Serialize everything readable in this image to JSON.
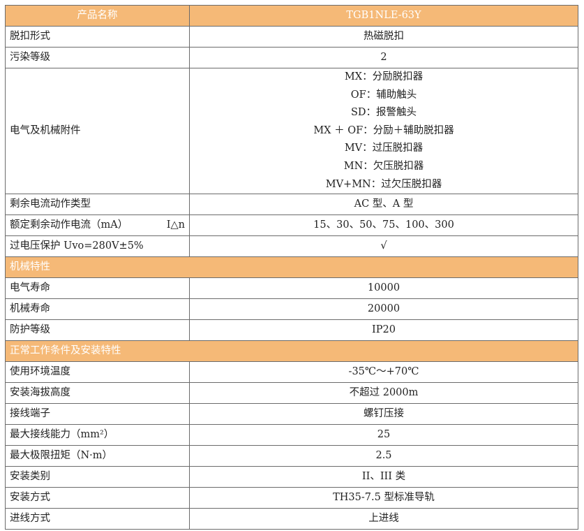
{
  "header": {
    "label": "产品名称",
    "value": "TGB1NLE-63Y"
  },
  "colors": {
    "header_bg": "#f5b977",
    "header_text": "#ffffff",
    "border": "#6b6b6b"
  },
  "rows": [
    {
      "type": "row",
      "label": "脱扣形式",
      "value": "热磁脱扣"
    },
    {
      "type": "row",
      "label": "污染等级",
      "value": "2"
    },
    {
      "type": "multi",
      "label": "电气及机械附件",
      "values": [
        "MX：分励脱扣器",
        "OF：辅助触头",
        "SD：报警触头",
        "MX ＋ OF：分励＋辅助脱扣器",
        "MV：过压脱扣器",
        "MN：欠压脱扣器",
        "MV+MN：过欠压脱扣器"
      ]
    },
    {
      "type": "row",
      "label": "剩余电流动作类型",
      "value": "AC 型、A 型"
    },
    {
      "type": "row",
      "label": "额定剩余动作电流（mA）",
      "label_suffix": "I△n",
      "value": "15、30、50、75、100、300"
    },
    {
      "type": "row",
      "label": "过电压保护 Uvo=280V±5%",
      "value": "√"
    },
    {
      "type": "section",
      "label": "机械特性"
    },
    {
      "type": "row",
      "label": "电气寿命",
      "value": "10000"
    },
    {
      "type": "row",
      "label": "机械寿命",
      "value": "20000"
    },
    {
      "type": "row",
      "label": "防护等级",
      "value": "IP20"
    },
    {
      "type": "section",
      "label": "正常工作条件及安装特性"
    },
    {
      "type": "row",
      "label": "使用环境温度",
      "value": "-35℃～+70℃"
    },
    {
      "type": "row",
      "label": "安装海拔高度",
      "value": "不超过 2000m"
    },
    {
      "type": "row",
      "label": "接线端子",
      "value": "螺钉压接"
    },
    {
      "type": "row",
      "label": "最大接线能力（mm²）",
      "value": "25"
    },
    {
      "type": "row",
      "label": "最大极限扭矩（N·m）",
      "value": "2.5"
    },
    {
      "type": "row",
      "label": "安装类别",
      "value": "II、III 类"
    },
    {
      "type": "row",
      "label": "安装方式",
      "value": "TH35-7.5 型标准导轨"
    },
    {
      "type": "row",
      "label": "进线方式",
      "value": "上进线"
    }
  ]
}
